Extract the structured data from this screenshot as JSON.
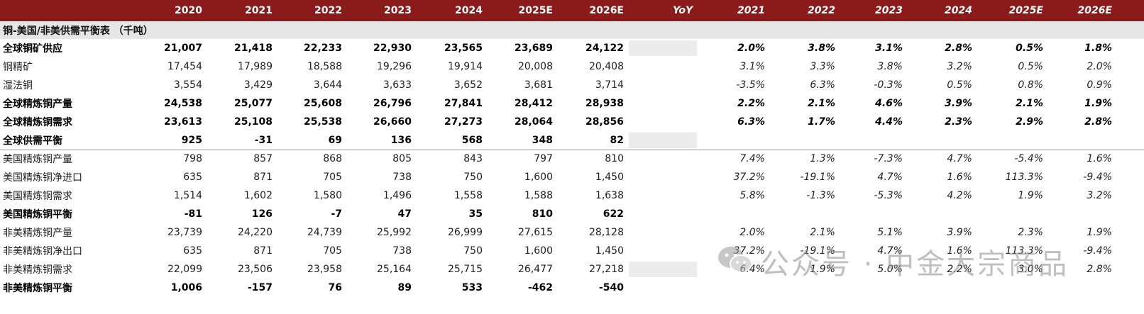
{
  "columns": {
    "years": [
      "2020",
      "2021",
      "2022",
      "2023",
      "2024",
      "2025E",
      "2026E"
    ],
    "yoy_label": "YoY",
    "yoy_years": [
      "2021",
      "2022",
      "2023",
      "2024",
      "2025E",
      "2026E"
    ]
  },
  "section_title": "铜-美国/非美供需平衡表 （千吨）",
  "rows": [
    {
      "label": "全球铜矿供应",
      "bold": true,
      "values": [
        "21,007",
        "21,418",
        "22,233",
        "22,930",
        "23,565",
        "23,689",
        "24,122"
      ],
      "yoy": [
        "2.0%",
        "3.8%",
        "3.1%",
        "2.8%",
        "0.5%",
        "1.8%"
      ]
    },
    {
      "label": "铜精矿",
      "bold": false,
      "values": [
        "17,454",
        "17,989",
        "18,588",
        "19,296",
        "19,914",
        "20,008",
        "20,408"
      ],
      "yoy": [
        "3.1%",
        "3.3%",
        "3.8%",
        "3.2%",
        "0.5%",
        "2.0%"
      ]
    },
    {
      "label": "湿法铜",
      "bold": false,
      "values": [
        "3,554",
        "3,429",
        "3,644",
        "3,633",
        "3,652",
        "3,681",
        "3,714"
      ],
      "yoy": [
        "-3.5%",
        "6.3%",
        "-0.3%",
        "0.5%",
        "0.8%",
        "0.9%"
      ]
    },
    {
      "label": "全球精炼铜产量",
      "bold": true,
      "values": [
        "24,538",
        "25,077",
        "25,608",
        "26,796",
        "27,841",
        "28,412",
        "28,938"
      ],
      "yoy": [
        "2.2%",
        "2.1%",
        "4.6%",
        "3.9%",
        "2.1%",
        "1.9%"
      ]
    },
    {
      "label": "全球精炼铜需求",
      "bold": true,
      "values": [
        "23,613",
        "25,108",
        "25,538",
        "26,660",
        "27,273",
        "28,064",
        "28,856"
      ],
      "yoy": [
        "6.3%",
        "1.7%",
        "4.4%",
        "2.3%",
        "2.9%",
        "2.8%"
      ]
    },
    {
      "label": "全球供需平衡",
      "bold": true,
      "values": [
        "925",
        "-31",
        "69",
        "136",
        "568",
        "348",
        "82"
      ],
      "yoy": [
        "",
        "",
        "",
        "",
        "",
        ""
      ]
    },
    {
      "label": "美国精炼铜产量",
      "bold": false,
      "values": [
        "798",
        "857",
        "868",
        "805",
        "843",
        "797",
        "810"
      ],
      "yoy": [
        "7.4%",
        "1.3%",
        "-7.3%",
        "4.7%",
        "-5.4%",
        "1.6%"
      ]
    },
    {
      "label": "美国精炼铜净进口",
      "bold": false,
      "values": [
        "635",
        "871",
        "705",
        "738",
        "750",
        "1,600",
        "1,450"
      ],
      "yoy": [
        "37.2%",
        "-19.1%",
        "4.7%",
        "1.6%",
        "113.3%",
        "-9.4%"
      ]
    },
    {
      "label": "美国精炼铜需求",
      "bold": false,
      "values": [
        "1,514",
        "1,602",
        "1,580",
        "1,496",
        "1,558",
        "1,588",
        "1,638"
      ],
      "yoy": [
        "5.8%",
        "-1.3%",
        "-5.3%",
        "4.2%",
        "1.9%",
        "3.2%"
      ]
    },
    {
      "label": "美国精炼铜平衡",
      "bold": true,
      "values": [
        "-81",
        "126",
        "-7",
        "47",
        "35",
        "810",
        "622"
      ],
      "yoy": [
        "",
        "",
        "",
        "",
        "",
        ""
      ]
    },
    {
      "label": "非美精炼铜产量",
      "bold": false,
      "values": [
        "23,739",
        "24,220",
        "24,739",
        "25,992",
        "26,999",
        "27,615",
        "28,128"
      ],
      "yoy": [
        "2.0%",
        "2.1%",
        "5.1%",
        "3.9%",
        "2.3%",
        "1.9%"
      ]
    },
    {
      "label": "非美精炼铜净出口",
      "bold": false,
      "values": [
        "635",
        "871",
        "705",
        "738",
        "750",
        "1,600",
        "1,450"
      ],
      "yoy": [
        "37.2%",
        "-19.1%",
        "4.7%",
        "1.6%",
        "113.3%",
        "-9.4%"
      ]
    },
    {
      "label": "非美精炼铜需求",
      "bold": false,
      "values": [
        "22,099",
        "23,506",
        "23,958",
        "25,164",
        "25,715",
        "26,477",
        "27,218"
      ],
      "yoy": [
        "6.4%",
        "1.9%",
        "5.0%",
        "2.2%",
        "3.0%",
        "2.8%"
      ]
    },
    {
      "label": "非美精炼铜平衡",
      "bold": true,
      "values": [
        "1,006",
        "-157",
        "76",
        "89",
        "533",
        "-462",
        "-540"
      ],
      "yoy": [
        "",
        "",
        "",
        "",
        "",
        ""
      ]
    }
  ],
  "watermark": {
    "text": "公众号 · 中金大宗商品",
    "icon": "wechat-icon"
  },
  "colors": {
    "header_bg": "#8b1a1a",
    "section_bg": "#e6e6e6"
  }
}
